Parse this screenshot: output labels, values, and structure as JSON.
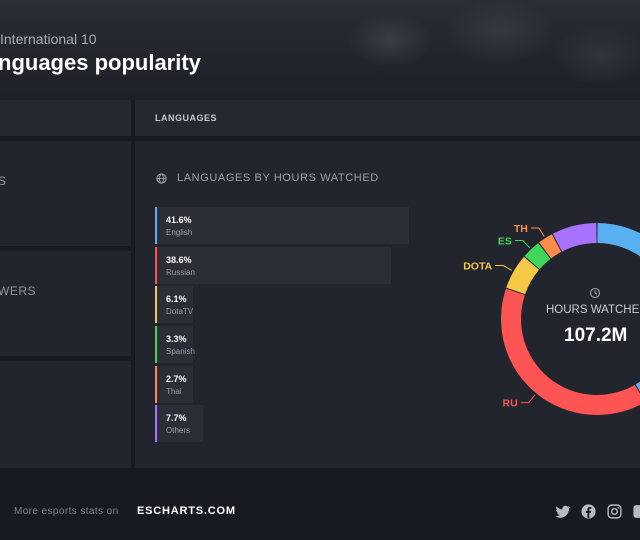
{
  "hero": {
    "subtitle": "International 10",
    "title": "nguages popularity"
  },
  "tabs": {
    "left_label": "",
    "right_label": "LANGUAGES"
  },
  "stats": [
    {
      "label": "S"
    },
    {
      "label": "WERS"
    },
    {
      "label": ""
    }
  ],
  "panel": {
    "heading": "LANGUAGES BY HOURS WATCHED",
    "icon": "globe-icon"
  },
  "languages": [
    {
      "pct": "41.6%",
      "name": "English",
      "value": 41.6,
      "color": "#58b0f0"
    },
    {
      "pct": "38.6%",
      "name": "Russian",
      "value": 38.6,
      "color": "#ff5454"
    },
    {
      "pct": "6.1%",
      "name": "DotaTV",
      "value": 6.1,
      "color": "#f5c945"
    },
    {
      "pct": "3.3%",
      "name": "Spanish",
      "value": 3.3,
      "color": "#3fd65a"
    },
    {
      "pct": "2.7%",
      "name": "Thai",
      "value": 2.7,
      "color": "#ff8c4a"
    },
    {
      "pct": "7.7%",
      "name": "Others",
      "value": 7.7,
      "color": "#a872ff"
    }
  ],
  "donut": {
    "center_title": "HOURS WATCHED",
    "center_value": "107.2M",
    "labels": [
      {
        "text": "TH",
        "color": "#ff8c4a"
      },
      {
        "text": "ES",
        "color": "#3fd65a"
      },
      {
        "text": "DOTA",
        "color": "#f5c945"
      },
      {
        "text": "RU",
        "color": "#ff5454"
      }
    ]
  },
  "footer": {
    "text": "More esports stats on",
    "brand": "ESCHARTS.COM",
    "icons": [
      "twitter-icon",
      "facebook-icon",
      "instagram-icon",
      "vk-icon"
    ]
  }
}
